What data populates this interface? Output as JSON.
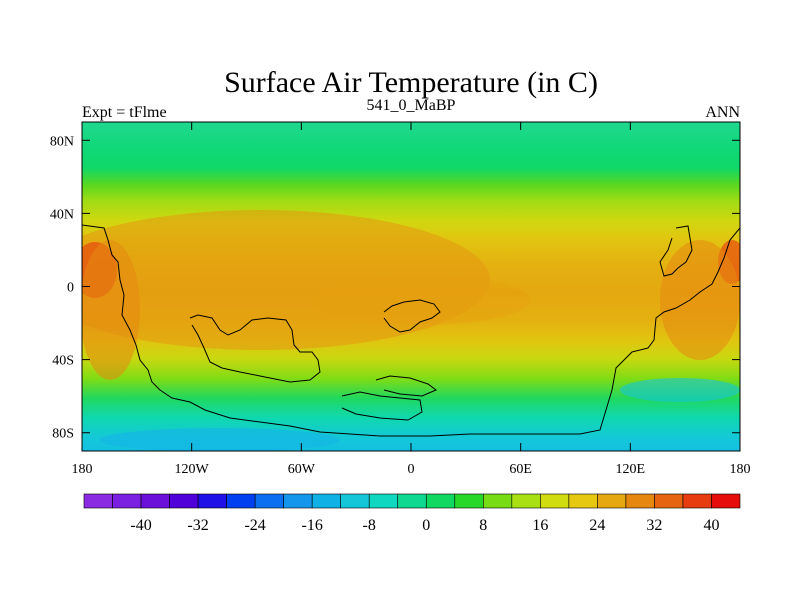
{
  "title": "Surface Air Temperature (in C)",
  "subtitle_left": "Expt = tFlme",
  "subtitle_center": "541_0_MaBP",
  "subtitle_right": "ANN",
  "lat_ticks": [
    "80N",
    "40N",
    "0",
    "40S",
    "80S"
  ],
  "lat_values": [
    80,
    40,
    0,
    -40,
    -80
  ],
  "lon_ticks": [
    "180",
    "120W",
    "60W",
    "0",
    "60E",
    "120E",
    "180"
  ],
  "lon_values": [
    -180,
    -120,
    -60,
    0,
    60,
    120,
    180
  ],
  "lat_range": [
    -90,
    90
  ],
  "lon_range": [
    -180,
    180
  ],
  "colorbar": {
    "ticks": [
      "-40",
      "-32",
      "-24",
      "-16",
      "-8",
      "0",
      "8",
      "16",
      "24",
      "32",
      "40"
    ],
    "colors": [
      "#8a2be2",
      "#7b1fe0",
      "#6a10d8",
      "#5000d8",
      "#1e10e6",
      "#0040f0",
      "#0a6ff0",
      "#1496ec",
      "#10b2e6",
      "#14c6d8",
      "#10d8c0",
      "#10d890",
      "#10d860",
      "#28d828",
      "#78dc14",
      "#a8e014",
      "#d0dc10",
      "#e6c810",
      "#e6a810",
      "#e68810",
      "#e66410",
      "#e63c10",
      "#e60c0c"
    ]
  }
}
